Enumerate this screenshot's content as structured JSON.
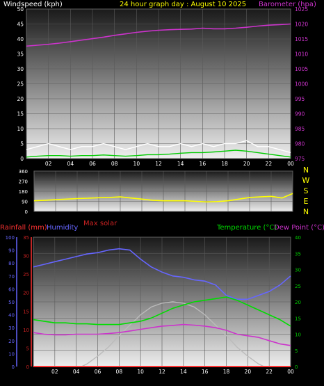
{
  "colors": {
    "wind_label": "#ffffff",
    "title": "#ffff00",
    "barometer": "#cc33cc",
    "wind_avg": "#00cc00",
    "wind_gust": "#ffffff",
    "direction": "#ffff00",
    "max_solar": "#cc2222",
    "rain": "#ff3333",
    "humidity": "#6666ff",
    "temperature": "#00dd00",
    "dew_point": "#cc33cc",
    "solar_curve": "#bbbbbb",
    "rain_axis_text": "#cc2222",
    "humidity_axis_text": "#6666ff",
    "temp_axis_text": "#00cc00"
  },
  "header": {
    "windspeed_label": "Windspeed (kph)",
    "title": "24 hour graph day : August 10 2025",
    "barometer_label": "Barometer (hpa)"
  },
  "direction_panel": {
    "compass": [
      "N",
      "W",
      "S",
      "E",
      "N"
    ],
    "max_solar_label": "Max solar"
  },
  "bottom_header": {
    "rain_label": "Rainfall (mm)",
    "humidity_label": "Humidity",
    "temp_label": "Temperature (°C)",
    "dew_label": "Dew Point (°C)"
  },
  "chart_data": [
    {
      "type": "line",
      "id": "wind-barometer",
      "title": "24 hour graph day : August 10 2025",
      "x_ticks": [
        "02",
        "04",
        "06",
        "08",
        "10",
        "12",
        "14",
        "16",
        "18",
        "20",
        "22",
        "00"
      ],
      "xlim": [
        0,
        24
      ],
      "y_left_label": "Windspeed (kph)",
      "y_left_ticks": [
        0,
        5,
        10,
        15,
        20,
        25,
        30,
        35,
        40,
        45,
        50
      ],
      "y_left_lim": [
        0,
        50
      ],
      "y_right_label": "Barometer (hpa)",
      "y_right_ticks": [
        975,
        980,
        985,
        990,
        995,
        1000,
        1005,
        1010,
        1015,
        1020,
        1025
      ],
      "y_right_lim": [
        975,
        1025
      ],
      "series": [
        {
          "name": "Barometer",
          "axis": "right",
          "x": [
            0,
            1,
            2,
            3,
            4,
            5,
            6,
            7,
            8,
            9,
            10,
            11,
            12,
            13,
            14,
            15,
            16,
            17,
            18,
            19,
            20,
            21,
            22,
            23,
            24
          ],
          "values": [
            1012.6,
            1012.9,
            1013.2,
            1013.6,
            1014.1,
            1014.6,
            1015.1,
            1015.6,
            1016.2,
            1016.7,
            1017.2,
            1017.6,
            1017.9,
            1018.1,
            1018.2,
            1018.3,
            1018.6,
            1018.4,
            1018.4,
            1018.6,
            1018.9,
            1019.3,
            1019.6,
            1019.8,
            1020.0
          ]
        },
        {
          "name": "Wind gust",
          "axis": "left",
          "x": [
            0,
            1,
            2,
            3,
            4,
            5,
            6,
            7,
            8,
            9,
            10,
            11,
            12,
            13,
            14,
            15,
            16,
            17,
            18,
            19,
            20,
            21,
            22,
            23,
            24
          ],
          "values": [
            3,
            4,
            5,
            4,
            3,
            4,
            4,
            5,
            4,
            3,
            4,
            5,
            4,
            4,
            5,
            4,
            5,
            4,
            5,
            5,
            6,
            4,
            4,
            3,
            2
          ]
        },
        {
          "name": "Wind average",
          "axis": "left",
          "x": [
            0,
            1,
            2,
            3,
            4,
            5,
            6,
            7,
            8,
            9,
            10,
            11,
            12,
            13,
            14,
            15,
            16,
            17,
            18,
            19,
            20,
            21,
            22,
            23,
            24
          ],
          "values": [
            0.5,
            0.8,
            1,
            1,
            0.8,
            1,
            1,
            1.2,
            1,
            0.8,
            1,
            1.3,
            1.3,
            1.5,
            1.8,
            2,
            2,
            2.2,
            2.5,
            2.8,
            2.5,
            2,
            1.5,
            1,
            0.5
          ]
        }
      ]
    },
    {
      "type": "line",
      "id": "wind-direction",
      "x_ticks": [
        "02",
        "04",
        "06",
        "08",
        "10",
        "12",
        "14",
        "16",
        "18",
        "20",
        "22",
        "00"
      ],
      "xlim": [
        0,
        24
      ],
      "y_ticks": [
        0,
        90,
        180,
        270,
        360
      ],
      "ylim": [
        0,
        360
      ],
      "series": [
        {
          "name": "Wind direction",
          "x": [
            0,
            1,
            2,
            3,
            4,
            5,
            6,
            7,
            8,
            9,
            10,
            11,
            12,
            13,
            14,
            15,
            16,
            17,
            18,
            19,
            20,
            21,
            22,
            23,
            24
          ],
          "values": [
            95,
            100,
            105,
            110,
            115,
            118,
            122,
            125,
            130,
            120,
            110,
            100,
            95,
            95,
            95,
            90,
            85,
            88,
            95,
            110,
            125,
            130,
            135,
            120,
            160
          ]
        }
      ]
    },
    {
      "type": "line",
      "id": "temp-humidity-rain",
      "x_ticks": [
        "02",
        "04",
        "06",
        "08",
        "10",
        "12",
        "14",
        "16",
        "18",
        "20",
        "22",
        "00"
      ],
      "xlim": [
        0,
        24
      ],
      "y_rain_ticks": [
        0,
        5,
        10,
        15,
        20,
        25,
        30,
        35
      ],
      "y_rain_lim": [
        0,
        35
      ],
      "y_humidity_ticks": [
        0,
        10,
        20,
        30,
        40,
        50,
        60,
        70,
        80,
        90,
        100
      ],
      "y_humidity_lim": [
        0,
        100
      ],
      "y_temp_ticks": [
        0,
        5,
        10,
        15,
        20,
        25,
        30,
        35,
        40
      ],
      "y_temp_lim": [
        0,
        40
      ],
      "series": [
        {
          "name": "Humidity",
          "axis": "humidity",
          "x": [
            0,
            1,
            2,
            3,
            4,
            5,
            6,
            7,
            8,
            9,
            10,
            11,
            12,
            13,
            14,
            15,
            16,
            17,
            18,
            19,
            20,
            21,
            22,
            23,
            24
          ],
          "values": [
            77,
            79,
            81,
            83,
            85,
            87,
            88,
            90,
            91,
            90,
            83,
            77,
            73,
            70,
            69,
            67,
            66,
            63,
            55,
            52,
            52,
            55,
            58,
            63,
            70
          ]
        },
        {
          "name": "Temperature",
          "axis": "temp",
          "x": [
            0,
            1,
            2,
            3,
            4,
            5,
            6,
            7,
            8,
            9,
            10,
            11,
            12,
            13,
            14,
            15,
            16,
            17,
            18,
            19,
            20,
            21,
            22,
            23,
            24
          ],
          "values": [
            14.5,
            14,
            13.5,
            13.5,
            13.2,
            13.2,
            13,
            13,
            13,
            13.5,
            14,
            15,
            16.5,
            18,
            19,
            20,
            20.5,
            21,
            21.5,
            20.5,
            19,
            17.5,
            16,
            14.5,
            12.5
          ]
        },
        {
          "name": "Dew Point",
          "axis": "temp",
          "x": [
            0,
            1,
            2,
            3,
            4,
            5,
            6,
            7,
            8,
            9,
            10,
            11,
            12,
            13,
            14,
            15,
            16,
            17,
            18,
            19,
            20,
            21,
            22,
            23,
            24
          ],
          "values": [
            10.5,
            10,
            9.8,
            9.8,
            10,
            10,
            10,
            10.2,
            10.5,
            11,
            11.5,
            12,
            12.5,
            12.7,
            13,
            12.8,
            12.5,
            12,
            11.2,
            10,
            9.5,
            9,
            8,
            7,
            6.5
          ]
        },
        {
          "name": "Max solar",
          "axis": "humidity",
          "x": [
            4.5,
            5,
            6,
            7,
            8,
            9,
            10,
            11,
            12,
            13,
            14,
            15,
            16,
            17,
            18,
            19,
            20,
            21,
            21.5
          ],
          "values": [
            0,
            2,
            8,
            15,
            24,
            32,
            40,
            46,
            49,
            50,
            49,
            46,
            40,
            32,
            24,
            15,
            8,
            2,
            0
          ]
        },
        {
          "name": "Rainfall",
          "axis": "rain",
          "x": [
            0,
            24
          ],
          "values": [
            0,
            0
          ]
        }
      ]
    }
  ]
}
